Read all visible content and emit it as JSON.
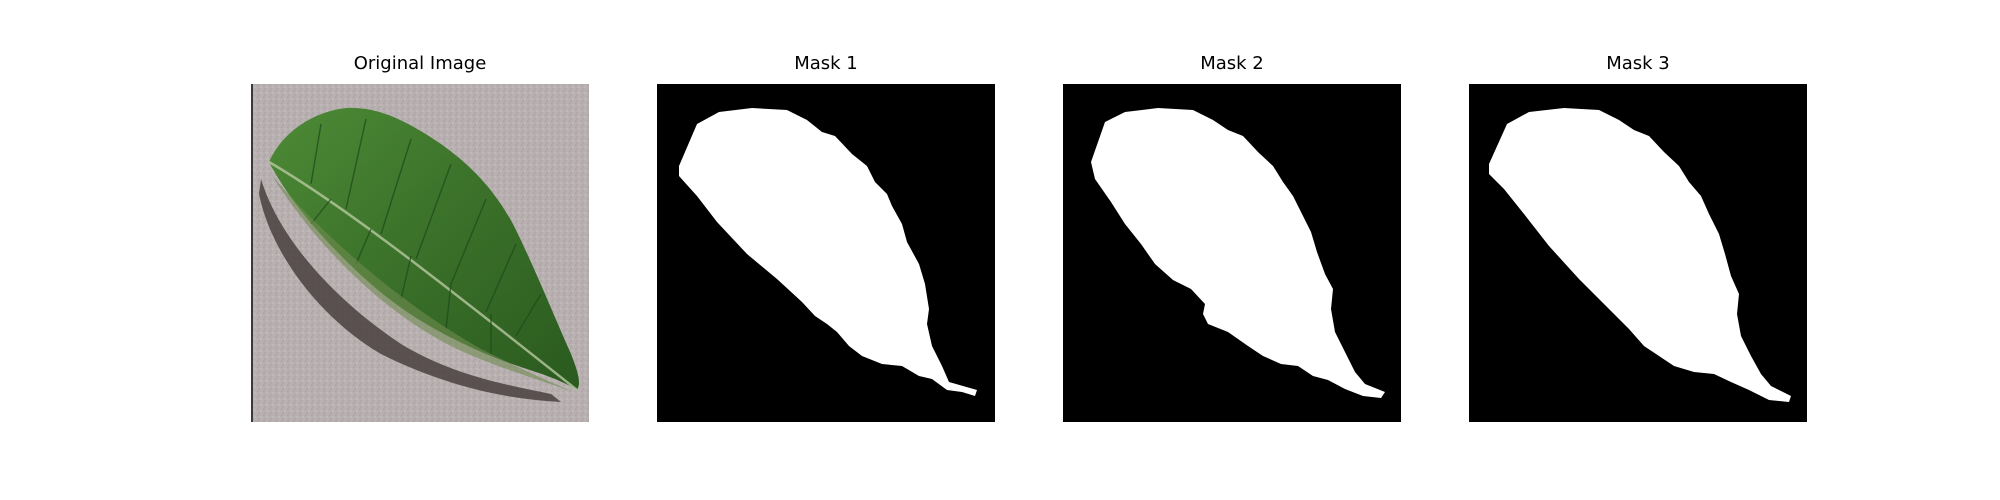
{
  "panels": [
    {
      "title": "Original Image"
    },
    {
      "title": "Mask 1"
    },
    {
      "title": "Mask 2"
    },
    {
      "title": "Mask 3"
    }
  ],
  "colors": {
    "figure_background": "#ffffff",
    "photo_background": "#b8b0b0",
    "leaf_green": "#3f7a2e",
    "leaf_dark_green": "#1f4a1a",
    "leaf_shadow": "#3d3535",
    "mask_background": "#000000",
    "mask_foreground": "#ffffff"
  }
}
